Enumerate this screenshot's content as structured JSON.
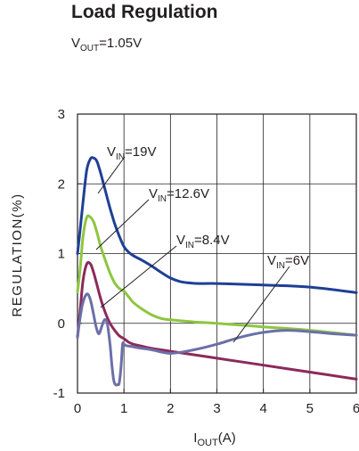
{
  "chart_data": {
    "type": "line",
    "title": "Load Regulation",
    "subtitle": {
      "main": "V",
      "sub": "OUT",
      "rest": "=1.05V"
    },
    "xlabel": {
      "main": "I",
      "sub": "OUT",
      "rest": "(A)"
    },
    "ylabel": "REGULATION(%)",
    "xlim": [
      0,
      6
    ],
    "ylim": [
      -1,
      3
    ],
    "xticks": [
      "0",
      "1",
      "2",
      "3",
      "4",
      "5",
      "6"
    ],
    "yticks": [
      "-1",
      "0",
      "1",
      "2",
      "3"
    ],
    "grid": true,
    "series": [
      {
        "name": "19V",
        "label": {
          "main": "V",
          "sub": "IN",
          "rest": "=19V"
        },
        "color": "#1f3f96",
        "x": [
          0,
          0.05,
          0.12,
          0.2,
          0.28,
          0.35,
          0.42,
          0.5,
          0.6,
          0.7,
          0.8,
          0.9,
          1.0,
          1.1,
          1.2,
          1.4,
          1.6,
          1.8,
          2.0,
          2.2,
          2.4,
          2.6,
          3.0,
          4.0,
          5.0,
          6.0
        ],
        "y": [
          1.0,
          1.3,
          1.75,
          2.2,
          2.36,
          2.37,
          2.32,
          2.15,
          1.9,
          1.65,
          1.43,
          1.25,
          1.1,
          1.02,
          0.97,
          0.9,
          0.82,
          0.73,
          0.65,
          0.6,
          0.58,
          0.57,
          0.57,
          0.55,
          0.52,
          0.44
        ]
      },
      {
        "name": "12.6V",
        "label": {
          "main": "V",
          "sub": "IN",
          "rest": "=12.6V"
        },
        "color": "#8dc63f",
        "x": [
          0,
          0.06,
          0.12,
          0.2,
          0.28,
          0.35,
          0.42,
          0.5,
          0.6,
          0.7,
          0.8,
          0.9,
          1.0,
          1.1,
          1.2,
          1.4,
          1.6,
          1.8,
          2.0,
          2.5,
          3.0,
          4.0,
          5.0,
          6.0
        ],
        "y": [
          0.45,
          0.8,
          1.25,
          1.52,
          1.52,
          1.45,
          1.3,
          1.1,
          0.9,
          0.72,
          0.58,
          0.5,
          0.46,
          0.38,
          0.3,
          0.2,
          0.12,
          0.07,
          0.05,
          0.02,
          0.0,
          -0.05,
          -0.1,
          -0.17
        ]
      },
      {
        "name": "8.4V",
        "label": {
          "main": "V",
          "sub": "IN",
          "rest": "=8.4V"
        },
        "color": "#8c2a5a",
        "x": [
          0,
          0.06,
          0.12,
          0.2,
          0.28,
          0.35,
          0.42,
          0.5,
          0.6,
          0.7,
          0.8,
          0.9,
          1.0,
          1.1,
          1.2,
          1.4,
          1.6,
          1.8,
          2.0,
          2.5,
          3.0,
          4.0,
          5.0,
          6.0
        ],
        "y": [
          -0.2,
          0.2,
          0.62,
          0.85,
          0.85,
          0.72,
          0.55,
          0.35,
          0.15,
          0.0,
          -0.1,
          -0.18,
          -0.22,
          -0.27,
          -0.3,
          -0.33,
          -0.36,
          -0.38,
          -0.4,
          -0.45,
          -0.5,
          -0.6,
          -0.7,
          -0.8
        ]
      },
      {
        "name": "6V",
        "label": {
          "main": "V",
          "sub": "IN",
          "rest": "=6V"
        },
        "color": "#6b6fa8",
        "x": [
          0,
          0.05,
          0.1,
          0.16,
          0.22,
          0.28,
          0.34,
          0.4,
          0.46,
          0.52,
          0.58,
          0.64,
          0.7,
          0.74,
          0.78,
          0.82,
          0.86,
          0.9,
          0.94,
          0.97,
          1.0,
          1.05,
          1.15,
          1.3,
          1.6,
          2.0,
          2.5,
          3.0,
          3.5,
          4.0,
          4.5,
          5.0,
          5.5,
          6.0
        ],
        "y": [
          -0.2,
          0.05,
          0.25,
          0.38,
          0.42,
          0.33,
          0.15,
          -0.05,
          -0.15,
          -0.05,
          0.05,
          0.0,
          -0.3,
          -0.6,
          -0.82,
          -0.88,
          -0.88,
          -0.85,
          -0.6,
          -0.3,
          -0.3,
          -0.32,
          -0.33,
          -0.35,
          -0.38,
          -0.43,
          -0.38,
          -0.3,
          -0.2,
          -0.13,
          -0.1,
          -0.12,
          -0.15,
          -0.17
        ]
      }
    ]
  }
}
